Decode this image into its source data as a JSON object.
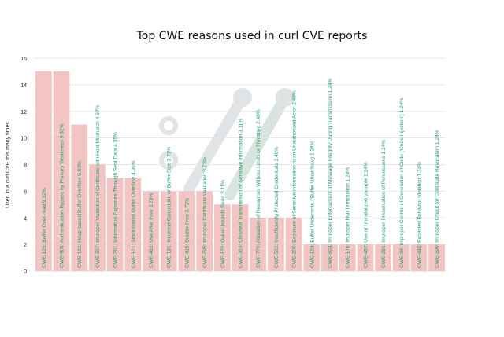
{
  "chart_data": {
    "type": "bar",
    "title": "Top CWE reasons used in curl CVE reports",
    "xlabel": "",
    "ylabel": "Used in a curl CVE this many times",
    "ylim": [
      0,
      16
    ],
    "yticks": [
      0,
      2,
      4,
      6,
      8,
      10,
      12,
      14,
      16
    ],
    "grid": true,
    "legend": "none",
    "colors": {
      "bar": "#f2c4c4",
      "label": "#1f9d60",
      "grid": "#e6e6e6",
      "watermark": "#c9ced3"
    },
    "categories": [
      "CWE-126: Buffer Over-read 9.32%",
      "CWE-305: Authentication Bypass by Primary Weakness 9.32%",
      "CWE-122: Heap-based Buffer Overflow 6.83%",
      "CWE-297: Improper Validation of Certificate with Host Mismatch 4.97%",
      "CWE-201: Information Exposure Through Sent Data 4.35%",
      "CWE-121: Stack-based Buffer Overflow 4.35%",
      "CWE-416: Use After Free 3.73%",
      "CWE-131: Incorrect Calculation of Buffer Size 3.73%",
      "CWE-415: Double Free 3.73%",
      "CWE-295: Improper Certificate Validation 3.73%",
      "CWE-125: Out-of-bounds Read 3.11%",
      "CWE-319: Cleartext Transmission of Sensitive Information 3.11%",
      "CWE-770: Allocation of Resources Without Limits or Throttling 2.48%",
      "CWE-522: Insufficiently Protected Credentials 2.48%",
      "CWE-200: Exposure of Sensitive Information to an Unauthorized Actor 2.48%",
      "CWE-124: Buffer Underwrite ('Buffer Underflow') 1.24%",
      "CWE-924: Improper Enforcement of Message Integrity During Transmission 1.24%",
      "CWE-170: Improper Null Termination 1.24%",
      "CWE-457: Use of Uninitialized Variable 1.24%",
      "CWE-281: Improper Preservation of Permissions 1.24%",
      "CWE-94: Improper Control of Generation of Code ('Code Injection') 1.24%",
      "CWE-440: Expected Behavior Violation 1.24%",
      "CWE-299: Improper Check for Certificate Revocation 1.24%"
    ],
    "values": [
      15,
      15,
      11,
      8,
      7,
      7,
      6,
      6,
      6,
      6,
      5,
      5,
      4,
      4,
      4,
      2,
      2,
      2,
      2,
      2,
      2,
      2,
      2
    ]
  }
}
